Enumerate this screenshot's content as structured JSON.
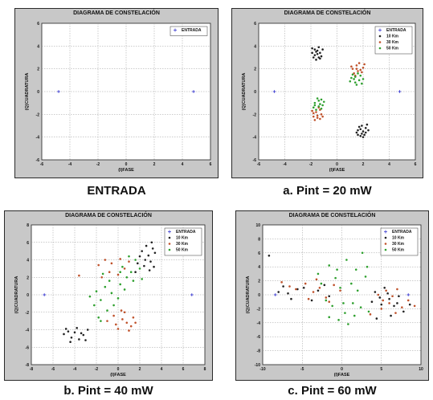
{
  "chart_data": [
    {
      "type": "scatter",
      "title": "DIAGRAMA DE CONSTELACIÓN",
      "xlabel": "(I)FASE",
      "ylabel": "(Q)CUADRATURA",
      "xlim": [
        -6,
        6
      ],
      "ylim": [
        -6,
        6
      ],
      "xticks": [
        -6,
        -4,
        -2,
        0,
        2,
        4,
        6
      ],
      "yticks": [
        -6,
        -4,
        -2,
        0,
        2,
        4,
        6
      ],
      "grid": true,
      "legend_position": "top-right",
      "caption": "ENTRADA",
      "series": [
        {
          "name": "ENTRADA",
          "color": "#3b3bd1",
          "marker": "plus",
          "points": [
            [
              -4.8,
              0
            ],
            [
              4.8,
              0
            ]
          ]
        }
      ]
    },
    {
      "type": "scatter",
      "title": "DIAGRAMA DE CONSTELACIÓN",
      "xlabel": "(I)FASE",
      "ylabel": "(Q)CUADRATURA",
      "xlim": [
        -6,
        6
      ],
      "ylim": [
        -6,
        6
      ],
      "xticks": [
        -6,
        -4,
        -2,
        0,
        2,
        4,
        6
      ],
      "yticks": [
        -6,
        -4,
        -2,
        0,
        2,
        4,
        6
      ],
      "grid": true,
      "legend_position": "top-right",
      "caption": "a. Pint = 20 mW",
      "series": [
        {
          "name": "ENTRADA",
          "color": "#3b3bd1",
          "marker": "plus",
          "points": [
            [
              -4.8,
              0
            ],
            [
              4.8,
              0
            ]
          ]
        },
        {
          "name": "10 Km",
          "color": "#222222",
          "marker": "dot",
          "points": [
            [
              -1.9,
              3.8
            ],
            [
              -1.6,
              3.5
            ],
            [
              -1.4,
              3.9
            ],
            [
              -1.7,
              3.2
            ],
            [
              -1.3,
              3.4
            ],
            [
              -1.8,
              3.0
            ],
            [
              -1.5,
              3.6
            ],
            [
              -1.2,
              3.1
            ],
            [
              -1.6,
              2.8
            ],
            [
              -1.9,
              3.4
            ],
            [
              -1.4,
              3.0
            ],
            [
              -1.1,
              3.7
            ],
            [
              -1.7,
              3.7
            ],
            [
              -1.3,
              2.9
            ],
            [
              -1.5,
              3.3
            ],
            [
              1.6,
              -3.4
            ],
            [
              1.9,
              -3.7
            ],
            [
              2.2,
              -3.2
            ],
            [
              1.8,
              -3.9
            ],
            [
              2.0,
              -3.5
            ],
            [
              2.3,
              -2.9
            ],
            [
              1.7,
              -3.1
            ],
            [
              2.1,
              -3.8
            ],
            [
              1.5,
              -3.6
            ],
            [
              2.4,
              -3.4
            ],
            [
              1.9,
              -3.0
            ],
            [
              2.0,
              -4.0
            ],
            [
              1.6,
              -3.8
            ],
            [
              2.2,
              -3.6
            ],
            [
              1.8,
              -3.3
            ]
          ]
        },
        {
          "name": "30 Km",
          "color": "#c0522b",
          "marker": "dot",
          "points": [
            [
              1.2,
              2.0
            ],
            [
              1.5,
              2.3
            ],
            [
              1.8,
              1.9
            ],
            [
              1.3,
              1.6
            ],
            [
              1.7,
              2.5
            ],
            [
              2.0,
              2.1
            ],
            [
              1.4,
              1.4
            ],
            [
              1.9,
              1.7
            ],
            [
              1.1,
              2.2
            ],
            [
              1.6,
              1.8
            ],
            [
              2.1,
              2.4
            ],
            [
              1.5,
              2.0
            ],
            [
              -1.2,
              -2.0
            ],
            [
              -1.5,
              -2.3
            ],
            [
              -1.8,
              -1.9
            ],
            [
              -1.3,
              -1.6
            ],
            [
              -1.7,
              -2.5
            ],
            [
              -1.4,
              -1.4
            ],
            [
              -1.9,
              -1.7
            ],
            [
              -1.1,
              -2.2
            ],
            [
              -1.6,
              -1.8
            ],
            [
              -1.5,
              -2.1
            ],
            [
              -1.3,
              -2.4
            ],
            [
              -1.8,
              -2.2
            ]
          ]
        },
        {
          "name": "50 Km",
          "color": "#2ea02e",
          "marker": "dot",
          "points": [
            [
              1.1,
              1.2
            ],
            [
              1.4,
              0.8
            ],
            [
              1.7,
              1.0
            ],
            [
              1.2,
              1.5
            ],
            [
              1.8,
              1.4
            ],
            [
              1.5,
              0.6
            ],
            [
              1.3,
              1.1
            ],
            [
              2.0,
              1.1
            ],
            [
              1.6,
              1.6
            ],
            [
              1.0,
              0.9
            ],
            [
              1.9,
              0.7
            ],
            [
              1.4,
              1.3
            ],
            [
              -1.1,
              -1.2
            ],
            [
              -1.4,
              -0.8
            ],
            [
              -1.7,
              -1.0
            ],
            [
              -1.2,
              -1.5
            ],
            [
              -1.8,
              -1.4
            ],
            [
              -1.5,
              -0.6
            ],
            [
              -1.3,
              -1.1
            ],
            [
              -1.6,
              -1.6
            ],
            [
              -1.0,
              -0.9
            ],
            [
              -1.4,
              -1.3
            ],
            [
              -1.2,
              -0.7
            ],
            [
              -1.7,
              -1.2
            ]
          ]
        }
      ]
    },
    {
      "type": "scatter",
      "title": "DIAGRAMA DE CONSTELACIÓN",
      "xlabel": "(I)FASE",
      "ylabel": "(Q)CUADRATURA",
      "xlim": [
        -8,
        8
      ],
      "ylim": [
        -8,
        8
      ],
      "xticks": [
        -8,
        -6,
        -4,
        -2,
        0,
        2,
        4,
        6,
        8
      ],
      "yticks": [
        -8,
        -6,
        -4,
        -2,
        0,
        2,
        4,
        6,
        8
      ],
      "grid": true,
      "legend_position": "top-right",
      "caption": "b. Pint = 40 mW",
      "series": [
        {
          "name": "ENTRADA",
          "color": "#3b3bd1",
          "marker": "plus",
          "points": [
            [
              -6.8,
              0
            ],
            [
              6.8,
              0
            ]
          ]
        },
        {
          "name": "10 Km",
          "color": "#222222",
          "marker": "dot",
          "points": [
            [
              -5.0,
              -4.5
            ],
            [
              -4.3,
              -4.9
            ],
            [
              -4.0,
              -4.3
            ],
            [
              -3.6,
              -5.1
            ],
            [
              -3.2,
              -4.6
            ],
            [
              -4.6,
              -4.2
            ],
            [
              -3.8,
              -3.8
            ],
            [
              -4.4,
              -5.4
            ],
            [
              -2.8,
              -4.0
            ],
            [
              -3.0,
              -5.2
            ],
            [
              -4.8,
              -3.9
            ],
            [
              -3.4,
              -4.4
            ],
            [
              2.2,
              5.0
            ],
            [
              2.8,
              4.5
            ],
            [
              3.2,
              5.3
            ],
            [
              2.5,
              4.0
            ],
            [
              3.0,
              3.8
            ],
            [
              2.0,
              4.4
            ],
            [
              3.4,
              4.8
            ],
            [
              2.6,
              5.6
            ],
            [
              3.1,
              6.0
            ],
            [
              1.8,
              3.6
            ],
            [
              2.4,
              3.3
            ],
            [
              2.9,
              2.8
            ],
            [
              1.6,
              2.6
            ],
            [
              3.3,
              3.2
            ]
          ]
        },
        {
          "name": "30 Km",
          "color": "#c0522b",
          "marker": "dot",
          "points": [
            [
              -3.6,
              2.2
            ],
            [
              -1.8,
              3.4
            ],
            [
              -1.2,
              4.0
            ],
            [
              -0.6,
              3.6
            ],
            [
              0.2,
              4.1
            ],
            [
              -0.8,
              2.6
            ],
            [
              0.6,
              3.0
            ],
            [
              1.0,
              3.8
            ],
            [
              -1.5,
              2.0
            ],
            [
              0.0,
              2.3
            ],
            [
              0.4,
              -2.8
            ],
            [
              0.8,
              -3.2
            ],
            [
              -0.4,
              -2.4
            ],
            [
              1.2,
              -3.6
            ],
            [
              0.0,
              -3.9
            ],
            [
              0.6,
              -2.0
            ],
            [
              1.4,
              -2.6
            ],
            [
              -0.2,
              -3.4
            ],
            [
              1.0,
              -4.1
            ],
            [
              -1.0,
              -3.0
            ],
            [
              0.3,
              -1.8
            ],
            [
              1.6,
              -3.2
            ]
          ]
        },
        {
          "name": "50 Km",
          "color": "#2ea02e",
          "marker": "dot",
          "points": [
            [
              -2.2,
              -1.2
            ],
            [
              -1.6,
              -0.6
            ],
            [
              -2.0,
              0.4
            ],
            [
              -1.2,
              0.9
            ],
            [
              -0.8,
              1.6
            ],
            [
              -1.4,
              2.4
            ],
            [
              -0.6,
              0.2
            ],
            [
              0.2,
              1.2
            ],
            [
              0.8,
              2.0
            ],
            [
              0.4,
              3.2
            ],
            [
              1.2,
              2.6
            ],
            [
              1.6,
              4.0
            ],
            [
              1.4,
              1.6
            ],
            [
              0.0,
              -0.4
            ],
            [
              -0.4,
              -1.2
            ],
            [
              -1.0,
              -1.8
            ],
            [
              -1.8,
              -2.6
            ],
            [
              0.6,
              0.6
            ],
            [
              2.0,
              3.0
            ],
            [
              2.2,
              1.8
            ],
            [
              -2.6,
              -0.2
            ],
            [
              -1.6,
              -3.0
            ],
            [
              1.0,
              4.4
            ],
            [
              0.2,
              2.6
            ]
          ]
        }
      ]
    },
    {
      "type": "scatter",
      "title": "DIAGRAMA DE CONSTELACIÓN",
      "xlabel": "(I)FASE",
      "ylabel": "(Q)CUADRATURA",
      "xlim": [
        -10,
        10
      ],
      "ylim": [
        -10,
        10
      ],
      "xticks": [
        -10,
        -5,
        0,
        5,
        10
      ],
      "yticks": [
        -10,
        -8,
        -6,
        -4,
        -2,
        0,
        2,
        4,
        6,
        8,
        10
      ],
      "grid": true,
      "legend_position": "top-right",
      "caption": "c. Pint = 60 mW",
      "series": [
        {
          "name": "ENTRADA",
          "color": "#3b3bd1",
          "marker": "plus",
          "points": [
            [
              -8.4,
              0
            ],
            [
              8.4,
              0
            ]
          ]
        },
        {
          "name": "10 Km",
          "color": "#222222",
          "marker": "dot",
          "points": [
            [
              -9.2,
              5.6
            ],
            [
              -8.0,
              0.4
            ],
            [
              -7.4,
              1.2
            ],
            [
              -6.8,
              0.2
            ],
            [
              -6.4,
              -0.6
            ],
            [
              -5.6,
              0.8
            ],
            [
              -4.8,
              1.0
            ],
            [
              -3.8,
              -0.8
            ],
            [
              -3.0,
              0.6
            ],
            [
              -2.2,
              1.4
            ],
            [
              -1.6,
              -0.2
            ],
            [
              4.2,
              0.4
            ],
            [
              4.8,
              -0.4
            ],
            [
              5.4,
              1.0
            ],
            [
              5.0,
              -1.4
            ],
            [
              6.0,
              -0.6
            ],
            [
              6.6,
              -1.6
            ],
            [
              7.2,
              -0.2
            ],
            [
              7.8,
              -2.4
            ],
            [
              8.6,
              -1.4
            ],
            [
              3.8,
              -1.0
            ],
            [
              5.8,
              0.2
            ],
            [
              6.2,
              -3.0
            ],
            [
              4.4,
              -3.4
            ],
            [
              7.0,
              -1.2
            ]
          ]
        },
        {
          "name": "30 Km",
          "color": "#c0522b",
          "marker": "dot",
          "points": [
            [
              -7.6,
              1.8
            ],
            [
              -6.6,
              1.2
            ],
            [
              -5.8,
              0.8
            ],
            [
              -4.6,
              1.6
            ],
            [
              -3.6,
              0.4
            ],
            [
              -2.8,
              1.0
            ],
            [
              -2.0,
              -0.4
            ],
            [
              -1.0,
              1.4
            ],
            [
              -0.2,
              0.6
            ],
            [
              -4.2,
              -0.6
            ],
            [
              -3.2,
              2.2
            ],
            [
              4.6,
              0.0
            ],
            [
              5.2,
              -0.8
            ],
            [
              5.6,
              0.6
            ],
            [
              6.4,
              -0.2
            ],
            [
              7.0,
              0.8
            ],
            [
              7.6,
              -1.8
            ],
            [
              8.4,
              -0.8
            ],
            [
              9.2,
              -1.6
            ],
            [
              6.0,
              -1.2
            ],
            [
              3.6,
              -2.8
            ],
            [
              6.8,
              -2.6
            ],
            [
              5.0,
              -2.0
            ],
            [
              -1.6,
              -1.0
            ]
          ]
        },
        {
          "name": "50 Km",
          "color": "#2ea02e",
          "marker": "dot",
          "points": [
            [
              -3.0,
              3.0
            ],
            [
              -1.6,
              4.2
            ],
            [
              -0.8,
              2.4
            ],
            [
              0.6,
              5.0
            ],
            [
              1.8,
              3.6
            ],
            [
              2.6,
              6.0
            ],
            [
              3.0,
              2.6
            ],
            [
              1.2,
              1.6
            ],
            [
              -0.2,
              1.0
            ],
            [
              -1.2,
              -1.6
            ],
            [
              -0.4,
              -3.6
            ],
            [
              0.4,
              -2.6
            ],
            [
              1.6,
              -3.0
            ],
            [
              2.4,
              -1.8
            ],
            [
              3.4,
              -2.4
            ],
            [
              -2.0,
              -0.8
            ],
            [
              -1.6,
              -3.2
            ],
            [
              0.8,
              -4.2
            ],
            [
              2.0,
              0.6
            ],
            [
              -2.6,
              1.6
            ],
            [
              1.4,
              -1.2
            ],
            [
              -0.6,
              3.6
            ],
            [
              0.2,
              -1.2
            ],
            [
              3.2,
              4.0
            ]
          ]
        }
      ]
    }
  ]
}
